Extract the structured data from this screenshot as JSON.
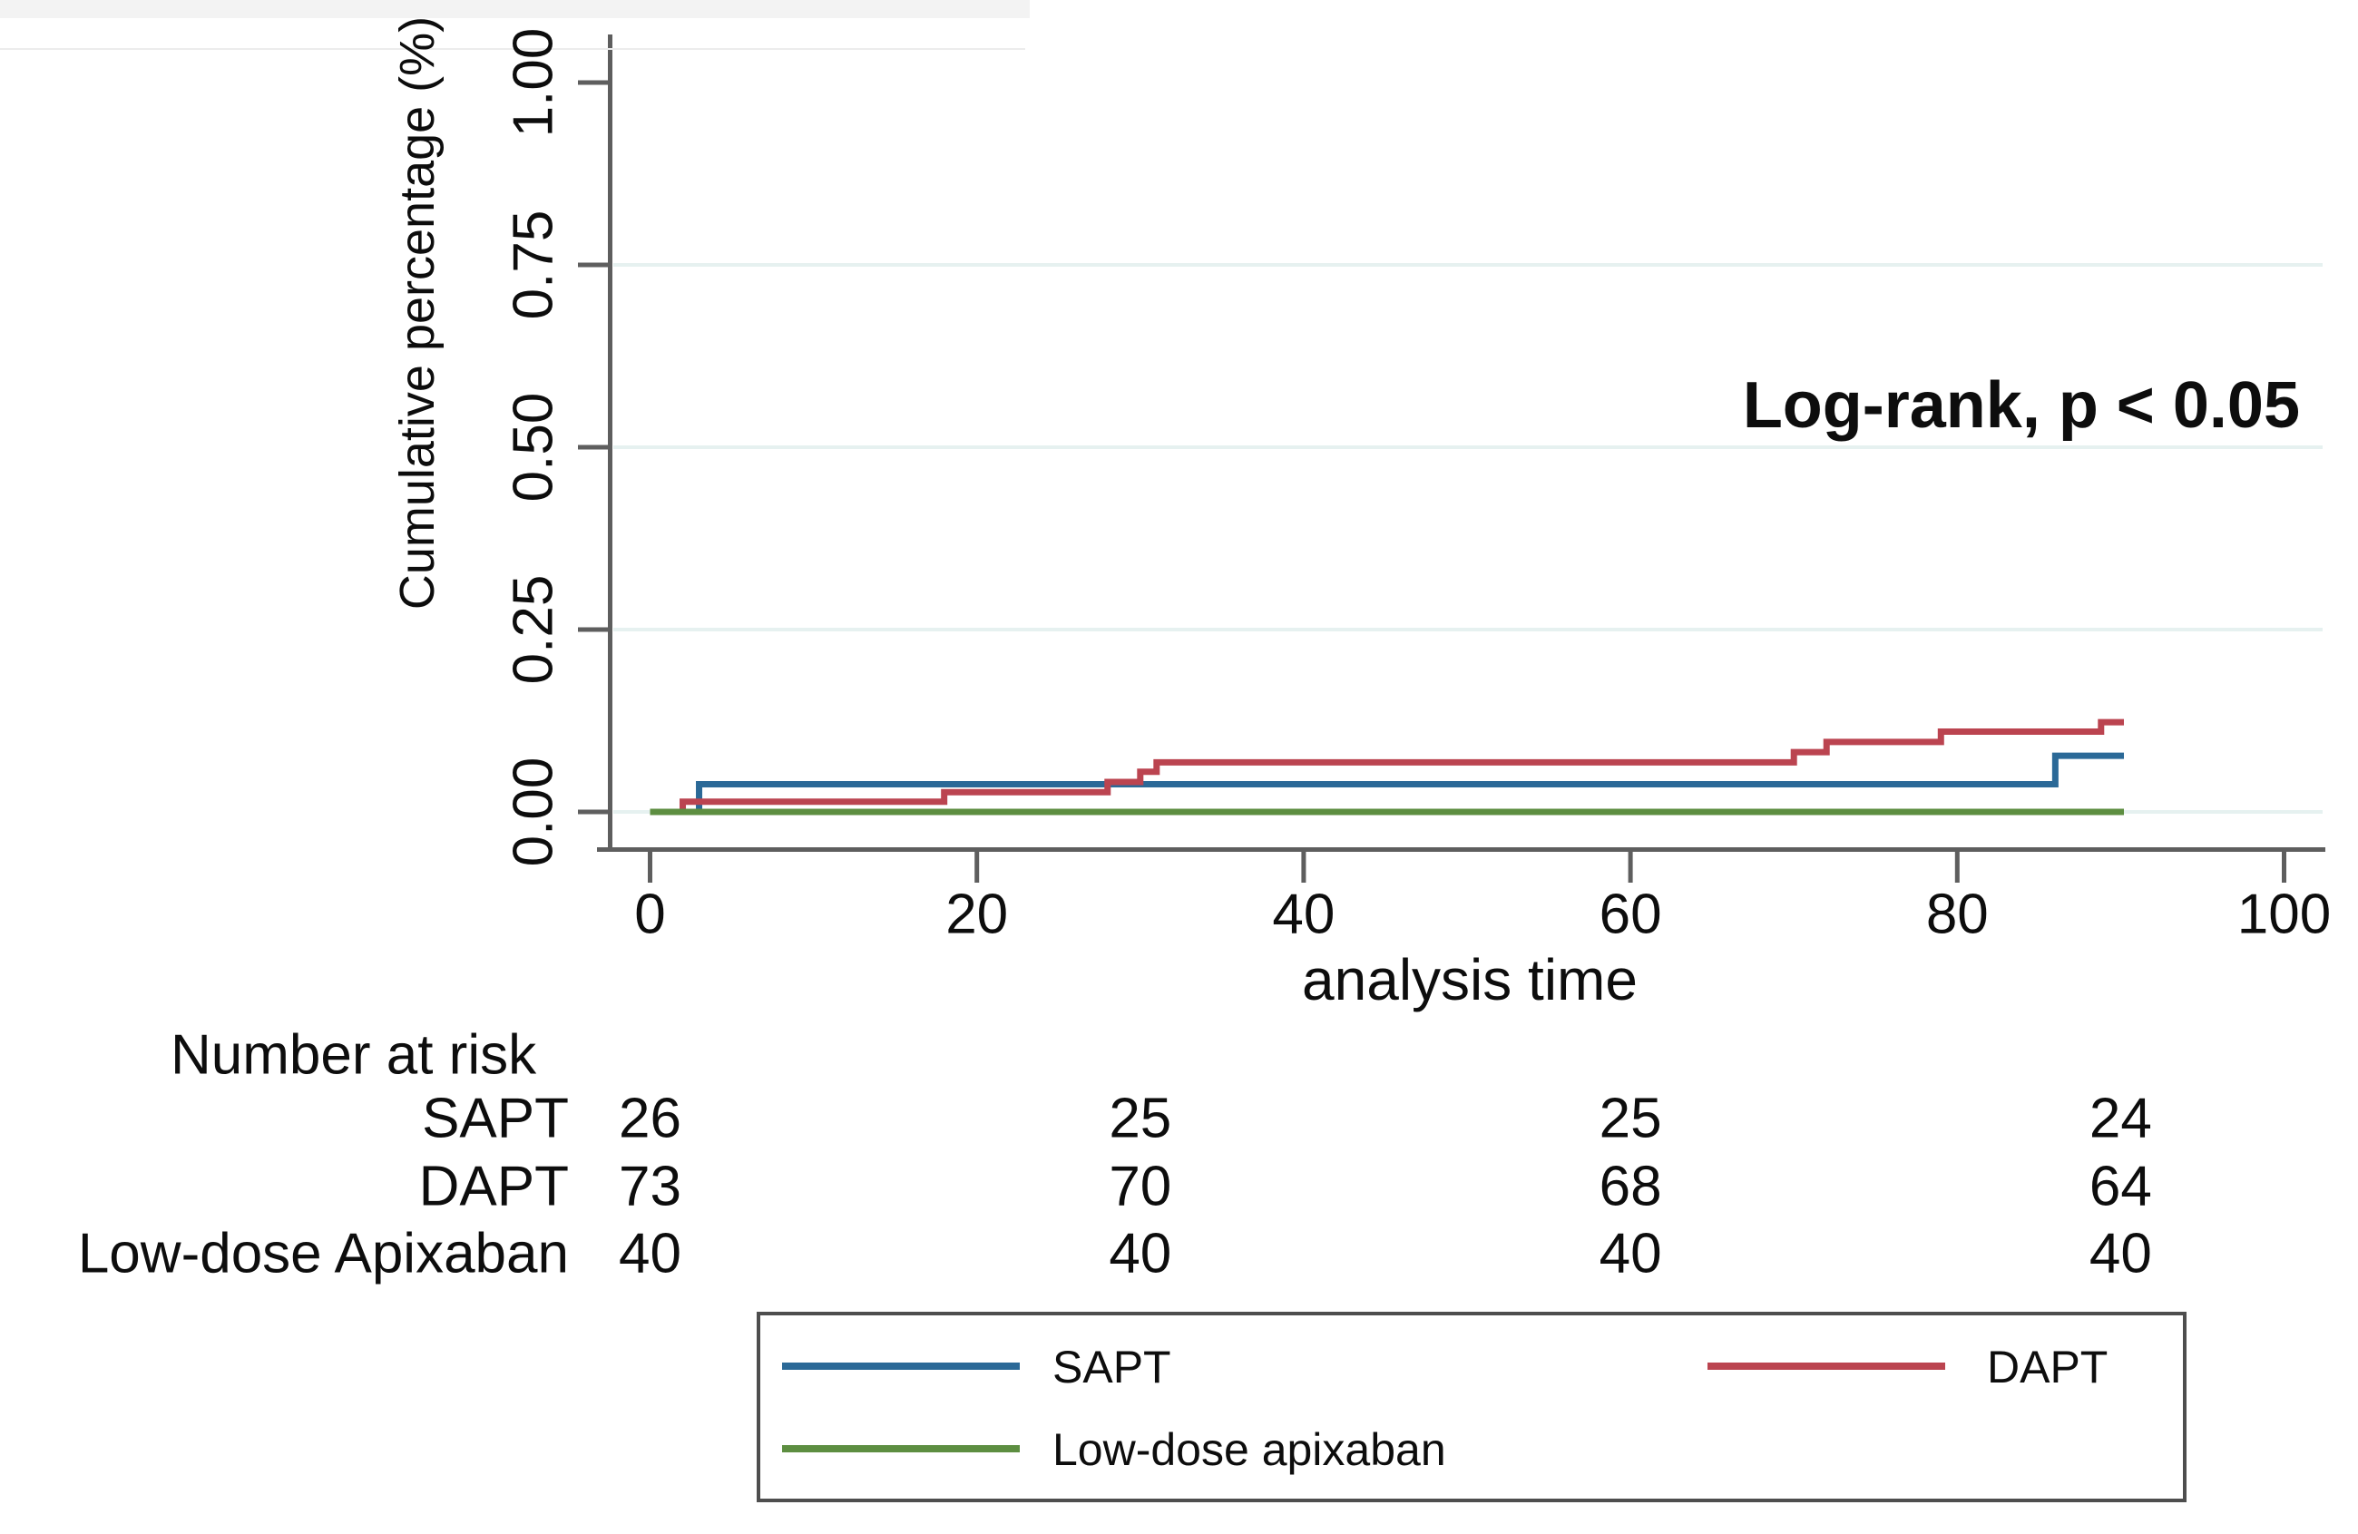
{
  "chart_data": {
    "type": "line",
    "subtype": "kaplan-meier-cumulative-step",
    "title": "",
    "xlabel": "analysis time",
    "ylabel": "Cumulative percentage (%)",
    "annotation": "Log-rank, p < 0.05",
    "xlim": [
      0,
      100
    ],
    "ylim": [
      0,
      1.0
    ],
    "x_ticks": [
      0,
      20,
      40,
      60,
      80,
      100
    ],
    "x_tick_labels": [
      "0",
      "20",
      "40",
      "60",
      "80",
      "100"
    ],
    "y_ticks": [
      0,
      0.25,
      0.5,
      0.75,
      1.0
    ],
    "y_tick_labels": [
      "0.00",
      "0.25",
      "0.50",
      "0.75",
      "1.00"
    ],
    "y_gridlines": [
      0,
      0.25,
      0.5,
      0.75
    ],
    "grid_color": "#e6f1f0",
    "axis_color": "#5e5e5e",
    "legend_position": "bottom",
    "series": [
      {
        "name": "SAPT",
        "color": "#2b6997",
        "points": [
          [
            0,
            0
          ],
          [
            3,
            0
          ],
          [
            3,
            0.038
          ],
          [
            86,
            0.038
          ],
          [
            86,
            0.077
          ],
          [
            90.2,
            0.077
          ]
        ]
      },
      {
        "name": "DAPT",
        "color": "#bb4450",
        "points": [
          [
            0,
            0
          ],
          [
            2,
            0
          ],
          [
            2,
            0.014
          ],
          [
            18,
            0.014
          ],
          [
            18,
            0.027
          ],
          [
            28,
            0.027
          ],
          [
            28,
            0.041
          ],
          [
            30,
            0.041
          ],
          [
            30,
            0.055
          ],
          [
            31,
            0.055
          ],
          [
            31,
            0.068
          ],
          [
            70,
            0.068
          ],
          [
            70,
            0.082
          ],
          [
            72,
            0.082
          ],
          [
            72,
            0.096
          ],
          [
            79,
            0.096
          ],
          [
            79,
            0.11
          ],
          [
            88.8,
            0.11
          ],
          [
            88.8,
            0.123
          ],
          [
            90.2,
            0.123
          ]
        ]
      },
      {
        "name": "Low-dose apixaban",
        "color": "#5d8e41",
        "points": [
          [
            0,
            0
          ],
          [
            90.2,
            0
          ]
        ]
      }
    ]
  },
  "risk_table": {
    "title": "Number at risk",
    "times": [
      0,
      30,
      60,
      90
    ],
    "rows": [
      {
        "label": "SAPT",
        "values": [
          "26",
          "25",
          "25",
          "24"
        ]
      },
      {
        "label": "DAPT",
        "values": [
          "73",
          "70",
          "68",
          "64"
        ]
      },
      {
        "label": "Low-dose Apixaban",
        "values": [
          "40",
          "40",
          "40",
          "40"
        ]
      }
    ]
  },
  "legend": {
    "entries": [
      {
        "label": "SAPT",
        "color": "#2b6997"
      },
      {
        "label": "DAPT",
        "color": "#bb4450"
      },
      {
        "label": "Low-dose apixaban",
        "color": "#5d8e41"
      }
    ]
  }
}
